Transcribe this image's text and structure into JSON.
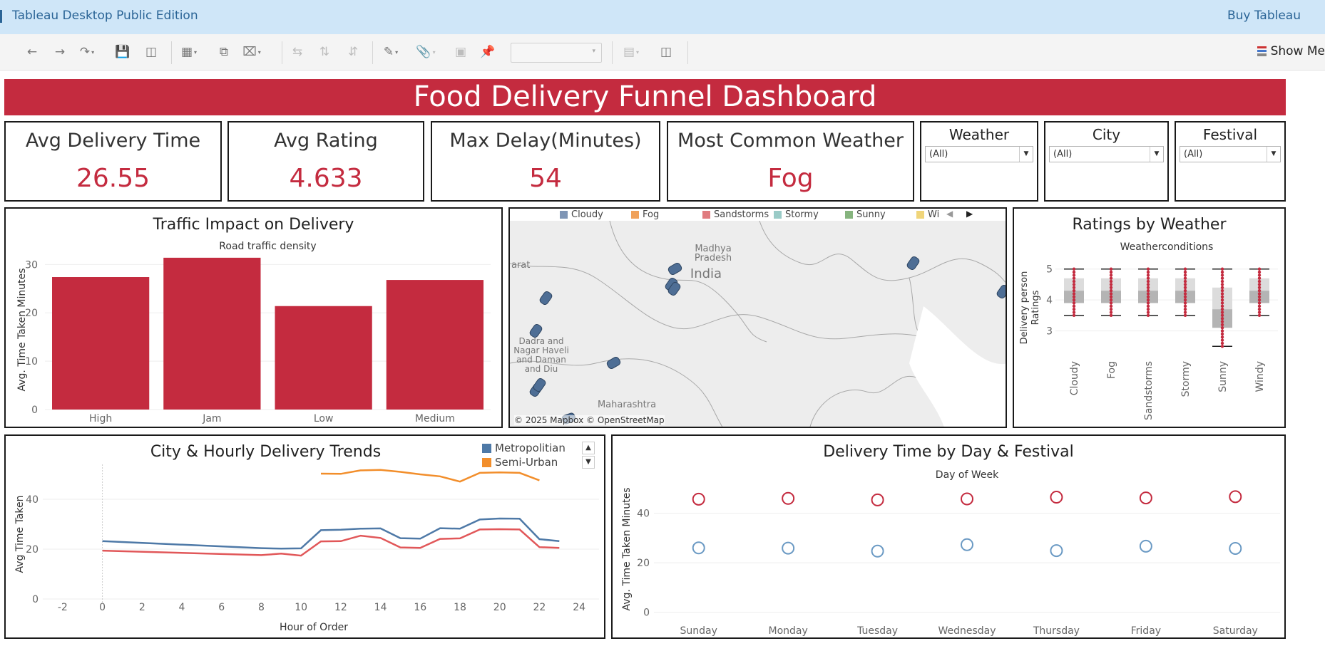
{
  "app": {
    "title": "Tableau Desktop Public Edition",
    "buy": "Buy Tableau",
    "show_me": "Show Me"
  },
  "dashboard": {
    "title": "Food Delivery Funnel Dashboard",
    "kpis": [
      {
        "label": "Avg Delivery Time",
        "value": "26.55"
      },
      {
        "label": "Avg Rating",
        "value": "4.633"
      },
      {
        "label": "Max Delay(Minutes)",
        "value": "54"
      },
      {
        "label": "Most Common Weather",
        "value": "Fog"
      }
    ],
    "filters": [
      {
        "label": "Weather",
        "value": "(All)"
      },
      {
        "label": "City",
        "value": "(All)"
      },
      {
        "label": "Festival",
        "value": "(All)"
      }
    ],
    "map": {
      "legend": [
        "Cloudy",
        "Fog",
        "Sandstorms",
        "Stormy",
        "Sunny",
        "Wi"
      ],
      "legend_colors": [
        "#4e79a7",
        "#f28e2b",
        "#e15759",
        "#76b7b2",
        "#59a14f",
        "#edc948"
      ],
      "labels": {
        "madhya": "Madhya\nPradesh",
        "india": "India",
        "arat": "arat",
        "dadra": "Dadra and\nNagar Haveli\nand Daman\nand Diu",
        "maharashtra": "Maharashtra"
      },
      "attribution": "© 2025 Mapbox © OpenStreetMap"
    }
  },
  "chart_data": [
    {
      "type": "bar",
      "title": "Traffic Impact on Delivery",
      "subtitle": "Road traffic density",
      "ylabel": "Avg. Time Taken Minutes",
      "categories": [
        "High",
        "Jam",
        "Low",
        "Medium"
      ],
      "values": [
        27.4,
        31.4,
        21.4,
        26.8
      ],
      "ylim": [
        0,
        33
      ],
      "yticks": [
        0,
        10,
        20,
        30
      ],
      "color": "#c42b3f"
    },
    {
      "type": "box",
      "title": "Ratings by Weather",
      "subtitle": "Weatherconditions",
      "ylabel": "Delivery person Ratings",
      "categories": [
        "Cloudy",
        "Fog",
        "Sandstorms",
        "Stormy",
        "Sunny",
        "Windy"
      ],
      "whisker_low": [
        3.5,
        3.5,
        3.5,
        3.5,
        2.5,
        3.5
      ],
      "q1": [
        3.9,
        3.9,
        3.9,
        3.9,
        3.1,
        3.9
      ],
      "median": [
        4.3,
        4.3,
        4.3,
        4.3,
        3.7,
        4.3
      ],
      "q3": [
        4.7,
        4.7,
        4.7,
        4.7,
        4.4,
        4.7
      ],
      "whisker_high": [
        5.0,
        5.0,
        5.0,
        5.0,
        5.0,
        5.0
      ],
      "ylim": [
        2.3,
        5.2
      ],
      "yticks": [
        3,
        4,
        5
      ],
      "color": "#c42b3f"
    },
    {
      "type": "line",
      "title": "City & Hourly Delivery Trends",
      "xlabel": "Hour of Order",
      "ylabel": "Avg Time Taken",
      "xlim": [
        -3,
        25
      ],
      "ylim": [
        -2,
        54
      ],
      "xticks": [
        -2,
        0,
        2,
        4,
        6,
        8,
        10,
        12,
        14,
        16,
        18,
        20,
        22,
        24
      ],
      "yticks": [
        0,
        20,
        40
      ],
      "legend": [
        "Metropolitian",
        "Semi-Urban"
      ],
      "series": [
        {
          "name": "Metropolitian",
          "color": "#4e79a7",
          "x": [
            0,
            8,
            9,
            10,
            11,
            12,
            13,
            14,
            15,
            16,
            17,
            18,
            19,
            20,
            21,
            22,
            23
          ],
          "y": [
            23.2,
            20.4,
            20.2,
            20.3,
            27.6,
            27.8,
            28.2,
            28.3,
            24.4,
            24.2,
            28.4,
            28.2,
            31.9,
            32.3,
            32.2,
            24.0,
            23.2
          ]
        },
        {
          "name": "Semi-Urban",
          "color": "#f28e2b",
          "x": [
            11,
            12,
            13,
            14,
            15,
            16,
            17,
            18,
            19,
            20,
            21,
            22
          ],
          "y": [
            50.3,
            50.2,
            51.6,
            51.8,
            51.0,
            50.0,
            49.2,
            47.1,
            50.6,
            50.8,
            50.6,
            47.6
          ]
        },
        {
          "name": "",
          "color": "#e15759",
          "x": [
            0,
            8,
            9,
            10,
            11,
            12,
            13,
            14,
            15,
            16,
            17,
            18,
            19,
            20,
            21,
            22,
            23
          ],
          "y": [
            19.4,
            17.6,
            18.2,
            17.4,
            23.1,
            23.2,
            25.4,
            24.5,
            20.7,
            20.5,
            24.1,
            24.3,
            27.9,
            28.0,
            27.9,
            20.8,
            20.5
          ]
        }
      ]
    },
    {
      "type": "scatter",
      "title": "Delivery Time by Day & Festival",
      "subtitle": "Day of Week",
      "ylabel": "Avg. Time Taken Minutes",
      "categories": [
        "Sunday",
        "Monday",
        "Tuesday",
        "Wednesday",
        "Thursday",
        "Friday",
        "Saturday"
      ],
      "ylim": [
        -3,
        54
      ],
      "yticks": [
        0,
        20,
        40
      ],
      "series": [
        {
          "name": "",
          "color": "#c42b3f",
          "values": [
            45.7,
            46.0,
            45.4,
            45.8,
            46.5,
            46.2,
            46.7
          ]
        },
        {
          "name": "",
          "color": "#6b9ac4",
          "values": [
            26.0,
            25.9,
            24.7,
            27.3,
            24.9,
            26.7,
            25.8
          ]
        }
      ]
    }
  ]
}
